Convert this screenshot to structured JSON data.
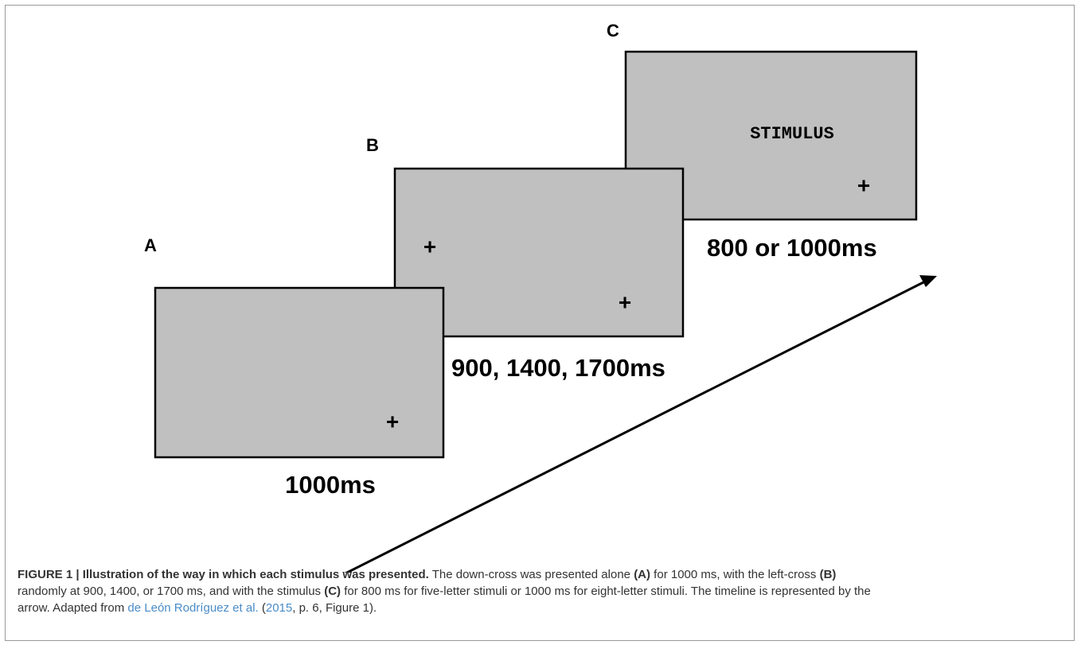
{
  "figure": {
    "panels": [
      {
        "label": "C",
        "duration": "800 or 1000ms",
        "stimulus": "STIMULUS"
      },
      {
        "label": "B",
        "duration": "900, 1400, 1700ms"
      },
      {
        "label": "A",
        "duration": "1000ms"
      }
    ],
    "cross": "+"
  },
  "caption": [
    [
      {
        "text": "FIGURE 1 | Illustration of the way in which each stimulus was presented.",
        "style": "bold"
      },
      {
        "text": " The down-cross was presented alone ",
        "style": "normal"
      },
      {
        "text": "(A)",
        "style": "bold"
      },
      {
        "text": " for 1000 ms, with the left-cross ",
        "style": "normal"
      },
      {
        "text": "(B)",
        "style": "bold"
      }
    ],
    [
      {
        "text": "randomly at 900, 1400, or 1700 ms, and with the stimulus ",
        "style": "normal"
      },
      {
        "text": "(C)",
        "style": "bold"
      },
      {
        "text": " for 800 ms for five-letter stimuli or 1000 ms for eight-letter stimuli. The timeline is represented by the",
        "style": "normal"
      }
    ],
    [
      {
        "text": "arrow. Adapted from ",
        "style": "normal"
      },
      {
        "text": "de León Rodríguez et al.",
        "style": "link"
      },
      {
        "text": " (",
        "style": "normal"
      },
      {
        "text": "2015",
        "style": "link"
      },
      {
        "text": ", p. 6, Figure 1).",
        "style": "normal"
      }
    ]
  ]
}
